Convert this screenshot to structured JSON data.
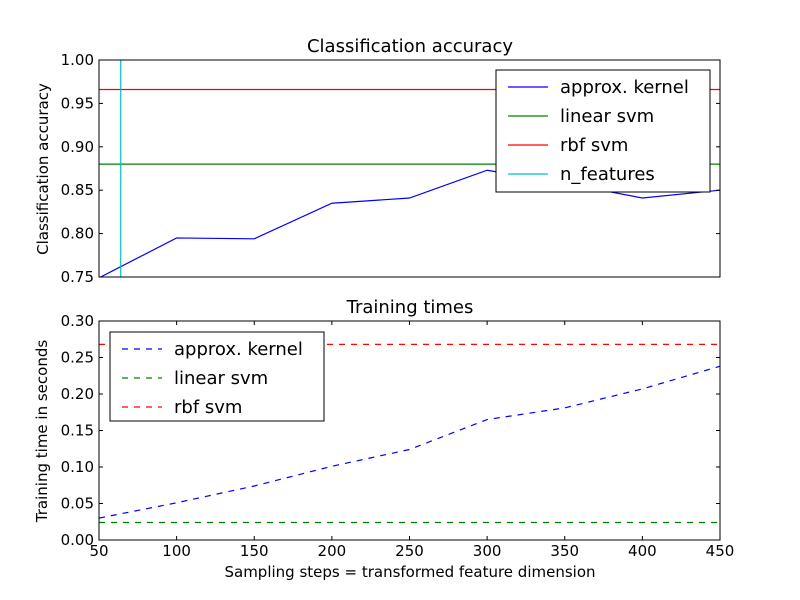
{
  "chart_data": [
    {
      "type": "line",
      "title": "Classification accuracy",
      "xlabel": "",
      "ylabel": "Classification accuracy",
      "xlim": [
        50,
        450
      ],
      "ylim": [
        0.75,
        1.0
      ],
      "xticks": [],
      "yticks": [
        0.75,
        0.8,
        0.85,
        0.9,
        0.95,
        1.0
      ],
      "ytick_labels": [
        "0.75",
        "0.80",
        "0.85",
        "0.90",
        "0.95",
        "1.00"
      ],
      "grid": false,
      "legend": {
        "placement": "top-right"
      },
      "series": [
        {
          "name": "approx. kernel",
          "color": "#0000ff",
          "style": "solid",
          "x": [
            50,
            100,
            150,
            200,
            250,
            300,
            350,
            400,
            450
          ],
          "y": [
            0.749,
            0.795,
            0.794,
            0.835,
            0.841,
            0.873,
            0.858,
            0.841,
            0.85
          ]
        },
        {
          "name": "linear svm",
          "color": "#008000",
          "style": "solid",
          "kind": "hline",
          "y": 0.88
        },
        {
          "name": "rbf svm",
          "color": "#ff0000",
          "style": "solid",
          "kind": "hline",
          "y": 0.966
        },
        {
          "name": "n_features",
          "color": "#00bfbf",
          "style": "solid",
          "kind": "vline",
          "x": 64
        }
      ]
    },
    {
      "type": "line",
      "title": "Training times",
      "xlabel": "Sampling steps = transformed feature dimension",
      "ylabel": "Training time in seconds",
      "xlim": [
        50,
        450
      ],
      "ylim": [
        0.0,
        0.3
      ],
      "xticks": [
        50,
        100,
        150,
        200,
        250,
        300,
        350,
        400,
        450
      ],
      "xtick_labels": [
        "50",
        "100",
        "150",
        "200",
        "250",
        "300",
        "350",
        "400",
        "450"
      ],
      "yticks": [
        0.0,
        0.05,
        0.1,
        0.15,
        0.2,
        0.25,
        0.3
      ],
      "ytick_labels": [
        "0.00",
        "0.05",
        "0.10",
        "0.15",
        "0.20",
        "0.25",
        "0.30"
      ],
      "grid": false,
      "legend": {
        "placement": "top-left"
      },
      "series": [
        {
          "name": "approx. kernel",
          "color": "#0000ff",
          "style": "dashed",
          "x": [
            50,
            100,
            150,
            200,
            250,
            300,
            350,
            400,
            450
          ],
          "y": [
            0.03,
            0.051,
            0.074,
            0.101,
            0.124,
            0.165,
            0.181,
            0.207,
            0.238
          ]
        },
        {
          "name": "linear svm",
          "color": "#008000",
          "style": "dashed",
          "kind": "hline",
          "y": 0.024
        },
        {
          "name": "rbf svm",
          "color": "#ff0000",
          "style": "dashed",
          "kind": "hline",
          "y": 0.268
        }
      ]
    }
  ]
}
